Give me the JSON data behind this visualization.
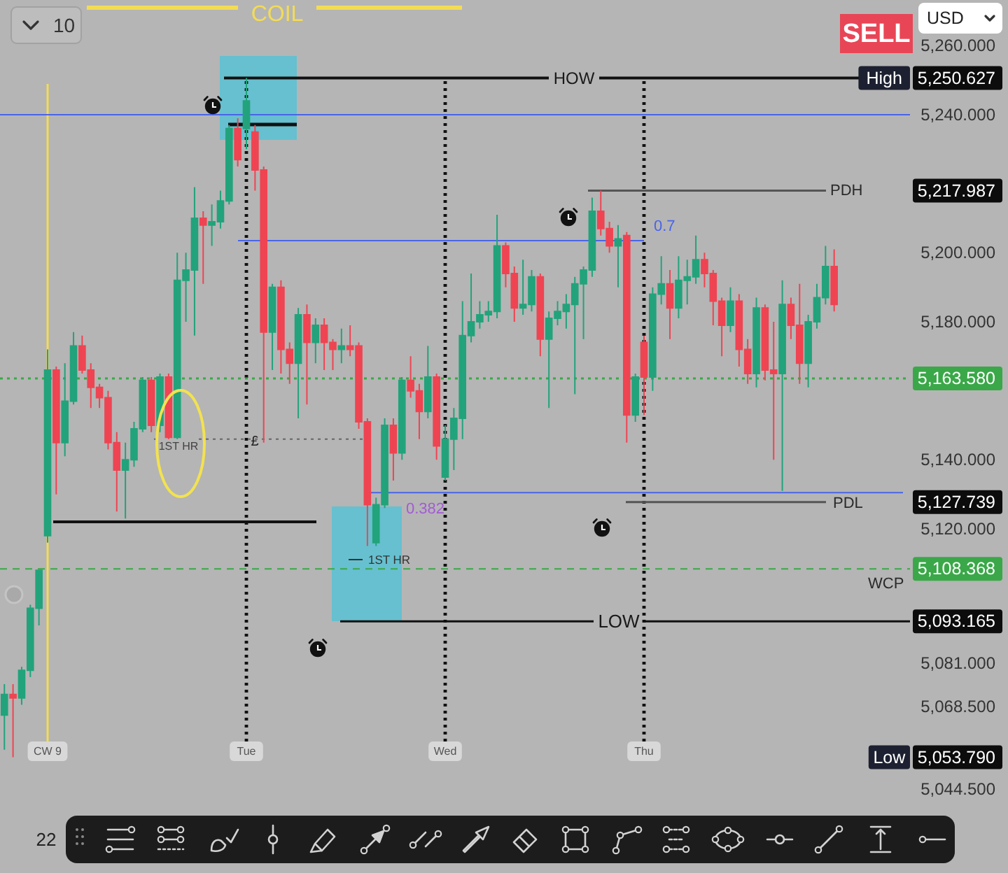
{
  "chart_data": {
    "type": "candlestick",
    "categories": [
      null,
      null,
      null,
      null,
      null,
      "CW 9",
      null,
      null,
      null,
      null,
      null,
      null,
      null,
      null,
      null,
      null,
      null,
      null,
      null,
      null,
      null,
      null,
      null,
      null,
      null,
      null,
      null,
      null,
      "Tue",
      null,
      null,
      null,
      null,
      null,
      null,
      null,
      null,
      null,
      null,
      null,
      null,
      null,
      null,
      null,
      null,
      null,
      null,
      null,
      null,
      null,
      null,
      "Wed",
      null,
      null,
      null,
      null,
      null,
      null,
      null,
      null,
      null,
      null,
      null,
      null,
      null,
      null,
      null,
      null,
      null,
      null,
      null,
      null,
      null,
      null,
      "Thu",
      null,
      null,
      null,
      null,
      null,
      null,
      null,
      null,
      null,
      null,
      null,
      null,
      null,
      null,
      null,
      null,
      null,
      null,
      null,
      null,
      null,
      null
    ],
    "ohlc": [
      [
        5066,
        5075,
        5056,
        5072
      ],
      [
        5072,
        5075,
        5053.79,
        5071
      ],
      [
        5071,
        5080,
        5069,
        5079
      ],
      [
        5079,
        5098,
        5077,
        5097
      ],
      [
        5097,
        5108,
        5092,
        5108
      ],
      [
        5118,
        5172,
        5116,
        5166
      ],
      [
        5166,
        5167,
        5130,
        5145
      ],
      [
        5145,
        5168,
        5141,
        5157
      ],
      [
        5157,
        5177,
        5156,
        5173
      ],
      [
        5173,
        5176,
        5165,
        5166
      ],
      [
        5166,
        5168,
        5155,
        5161
      ],
      [
        5161,
        5162,
        5155,
        5158
      ],
      [
        5158,
        5160,
        5143,
        5145
      ],
      [
        5145,
        5148,
        5125,
        5137
      ],
      [
        5137,
        5145,
        5123,
        5140
      ],
      [
        5140,
        5151,
        5138,
        5149
      ],
      [
        5149,
        5164,
        5148,
        5163
      ],
      [
        5163,
        5164,
        5148,
        5150
      ],
      [
        5150,
        5165,
        5148,
        5164
      ],
      [
        5164,
        5165,
        5146,
        5146.5
      ],
      [
        5146.5,
        5200,
        5146,
        5192
      ],
      [
        5192,
        5200,
        5180,
        5195
      ],
      [
        5195,
        5219,
        5176,
        5210
      ],
      [
        5210,
        5212,
        5191,
        5208
      ],
      [
        5208,
        5214,
        5202,
        5209
      ],
      [
        5209,
        5218,
        5207,
        5215
      ],
      [
        5215,
        5237,
        5214,
        5236
      ],
      [
        5236,
        5239,
        5225,
        5227
      ],
      [
        5236,
        5250.627,
        5230,
        5244
      ],
      [
        5235,
        5237,
        5218,
        5224
      ],
      [
        5224,
        5225,
        5145,
        5177
      ],
      [
        5177,
        5191,
        5166,
        5190
      ],
      [
        5190,
        5192,
        5165,
        5172
      ],
      [
        5172,
        5174,
        5162,
        5168
      ],
      [
        5168,
        5184,
        5152,
        5182
      ],
      [
        5182,
        5185,
        5156,
        5174
      ],
      [
        5174,
        5181,
        5168,
        5179
      ],
      [
        5179,
        5181,
        5166,
        5174
      ],
      [
        5174,
        5175,
        5166,
        5172
      ],
      [
        5172,
        5178,
        5168,
        5173
      ],
      [
        5173,
        5179,
        5170,
        5172
      ],
      [
        5173,
        5174,
        5149,
        5151
      ],
      [
        5151,
        5152,
        5115,
        5127
      ],
      [
        5116,
        5129,
        5115,
        5127
      ],
      [
        5127,
        5152,
        5126,
        5150
      ],
      [
        5150,
        5152,
        5134,
        5142
      ],
      [
        5142,
        5164,
        5140,
        5163
      ],
      [
        5163,
        5170,
        5158,
        5160
      ],
      [
        5160,
        5162,
        5146,
        5154
      ],
      [
        5154,
        5173,
        5152,
        5164
      ],
      [
        5164,
        5165,
        5140,
        5144
      ],
      [
        5135,
        5150,
        5134,
        5146
      ],
      [
        5146,
        5155,
        5137,
        5152
      ],
      [
        5152,
        5186,
        5146,
        5176
      ],
      [
        5176,
        5194,
        5174,
        5180
      ],
      [
        5180,
        5186,
        5178,
        5182
      ],
      [
        5182,
        5186,
        5180,
        5183
      ],
      [
        5183,
        5211,
        5181,
        5202
      ],
      [
        5202,
        5203,
        5190,
        5194
      ],
      [
        5194,
        5196,
        5180,
        5184
      ],
      [
        5184,
        5198,
        5182,
        5185
      ],
      [
        5185,
        5195,
        5183,
        5193
      ],
      [
        5193,
        5194,
        5170,
        5175
      ],
      [
        5175,
        5183,
        5155,
        5181
      ],
      [
        5181,
        5186,
        5179,
        5183
      ],
      [
        5183,
        5188,
        5178,
        5185
      ],
      [
        5185,
        5193,
        5159,
        5191
      ],
      [
        5191,
        5196,
        5175,
        5195
      ],
      [
        5195,
        5216,
        5193,
        5212
      ],
      [
        5212,
        5217.987,
        5205,
        5207
      ],
      [
        5207,
        5209,
        5200,
        5202
      ],
      [
        5202,
        5208,
        5190,
        5204
      ],
      [
        5205,
        5206,
        5145,
        5153
      ],
      [
        5153,
        5165,
        5151,
        5164
      ],
      [
        5174,
        5176,
        5153,
        5164
      ],
      [
        5164,
        5190,
        5160,
        5188
      ],
      [
        5188,
        5199,
        5185,
        5191
      ],
      [
        5191,
        5195,
        5175,
        5184
      ],
      [
        5184,
        5199,
        5181,
        5192
      ],
      [
        5192,
        5198,
        5185,
        5193
      ],
      [
        5193,
        5205,
        5191,
        5198
      ],
      [
        5198,
        5200,
        5190,
        5194
      ],
      [
        5194,
        5195,
        5179,
        5186
      ],
      [
        5186,
        5187,
        5170,
        5179
      ],
      [
        5179,
        5190,
        5177,
        5186
      ],
      [
        5186,
        5188,
        5167,
        5172
      ],
      [
        5172,
        5175,
        5162,
        5165
      ],
      [
        5165,
        5187,
        5161,
        5184
      ],
      [
        5184,
        5185,
        5163,
        5166
      ],
      [
        5166,
        5180,
        5140,
        5165
      ],
      [
        5165,
        5192,
        5131,
        5185
      ],
      [
        5185,
        5187,
        5175,
        5179
      ],
      [
        5179,
        5191,
        5162,
        5168
      ],
      [
        5168,
        5182,
        5161,
        5180
      ],
      [
        5180,
        5191,
        5178,
        5187
      ],
      [
        5187,
        5202,
        5185,
        5196
      ],
      [
        5196,
        5201,
        5183,
        5185
      ]
    ],
    "colors": [
      "#22a37b",
      "#ef4452",
      "#22a37b",
      "#22a37b",
      "#22a37b",
      "#22a37b",
      "#ef4452",
      "#22a37b",
      "#22a37b",
      "#ef4452",
      "#ef4452",
      "#ef4452",
      "#ef4452",
      "#ef4452",
      "#22a37b",
      "#22a37b",
      "#22a37b",
      "#ef4452",
      "#22a37b",
      "#ef4452",
      "#22a37b",
      "#22a37b",
      "#22a37b",
      "#ef4452",
      "#22a37b",
      "#22a37b",
      "#22a37b",
      "#ef4452",
      "#22a37b",
      "#ef4452",
      "#ef4452",
      "#22a37b",
      "#ef4452",
      "#ef4452",
      "#22a37b",
      "#ef4452",
      "#22a37b",
      "#ef4452",
      "#ef4452",
      "#22a37b",
      "#ef4452",
      "#ef4452",
      "#ef4452",
      "#22a37b",
      "#22a37b",
      "#ef4452",
      "#22a37b",
      "#ef4452",
      "#ef4452",
      "#22a37b",
      "#ef4452",
      "#22a37b",
      "#22a37b",
      "#22a37b",
      "#22a37b",
      "#22a37b",
      "#22a37b",
      "#22a37b",
      "#ef4452",
      "#ef4452",
      "#22a37b",
      "#22a37b",
      "#ef4452",
      "#22a37b",
      "#22a37b",
      "#22a37b",
      "#22a37b",
      "#22a37b",
      "#22a37b",
      "#ef4452",
      "#ef4452",
      "#22a37b",
      "#ef4452",
      "#22a37b",
      "#ef4452",
      "#22a37b",
      "#22a37b",
      "#ef4452",
      "#22a37b",
      "#22a37b",
      "#22a37b",
      "#ef4452",
      "#ef4452",
      "#ef4452",
      "#22a37b",
      "#ef4452",
      "#ef4452",
      "#22a37b",
      "#ef4452",
      "#ef4452",
      "#22a37b",
      "#ef4452",
      "#ef4452",
      "#22a37b",
      "#22a37b",
      "#22a37b",
      "#ef4452"
    ],
    "ylim": [
      5044.5,
      5272
    ],
    "yticks": [
      {
        "value": 5260,
        "label": "5,260.000"
      },
      {
        "value": 5240,
        "label": "5,240.000"
      },
      {
        "value": 5200,
        "label": "5,200.000"
      },
      {
        "value": 5180,
        "label": "5,180.000"
      },
      {
        "value": 5140,
        "label": "5,140.000"
      },
      {
        "value": 5120,
        "label": "5,120.000"
      },
      {
        "value": 5081,
        "label": "5,081.000"
      },
      {
        "value": 5068.5,
        "label": "5,068.500"
      },
      {
        "value": 5044.5,
        "label": "5,044.500"
      }
    ],
    "ref_lines": [
      {
        "axis": "x",
        "value": "CW 9",
        "color": "#f3dc55"
      },
      {
        "axis": "x",
        "value": "Tue",
        "color": "#111111",
        "line_style": "dotted"
      },
      {
        "axis": "x",
        "value": "Wed",
        "color": "#111111",
        "line_style": "dotted"
      },
      {
        "axis": "x",
        "value": "Thu",
        "color": "#111111",
        "line_style": "dotted"
      },
      {
        "axis": "y",
        "value": 5271,
        "label": "COIL",
        "color": "#f3dc55"
      },
      {
        "axis": "y",
        "value": 5250.627,
        "label": "HOW",
        "color": "#111111"
      },
      {
        "axis": "y",
        "value": 5240,
        "color": "#4a64e8"
      },
      {
        "axis": "y",
        "value": 5217.987,
        "label": "PDH",
        "color": "#555555"
      },
      {
        "axis": "y",
        "value": 5203.5,
        "color": "#4a64e8"
      },
      {
        "axis": "y",
        "value": 5163.58,
        "color": "#3aa848",
        "line_style": "dotted"
      },
      {
        "axis": "y",
        "value": 5146,
        "label": "1ST HR",
        "color": "#666666",
        "line_style": "dotted"
      },
      {
        "axis": "y",
        "value": 5130.5,
        "color": "#4a64e8"
      },
      {
        "axis": "y",
        "value": 5127.739,
        "label": "PDL",
        "color": "#555555"
      },
      {
        "axis": "y",
        "value": 5122,
        "color": "#111111"
      },
      {
        "axis": "y",
        "value": 5108.368,
        "label": "WCP",
        "color": "#3aa848",
        "line_style": "dashed"
      },
      {
        "axis": "y",
        "value": 5093.165,
        "label": "LOW",
        "color": "#111111"
      }
    ],
    "annotations": [
      "10",
      "SELL",
      "USD",
      "22",
      "1ST HR",
      "£",
      "0.7",
      "0.382",
      "5,250.627",
      "High",
      "5,217.987",
      "5,163.580",
      "5,127.739",
      "5,108.368",
      "5,093.165",
      "5,053.790",
      "Low"
    ]
  }
}
